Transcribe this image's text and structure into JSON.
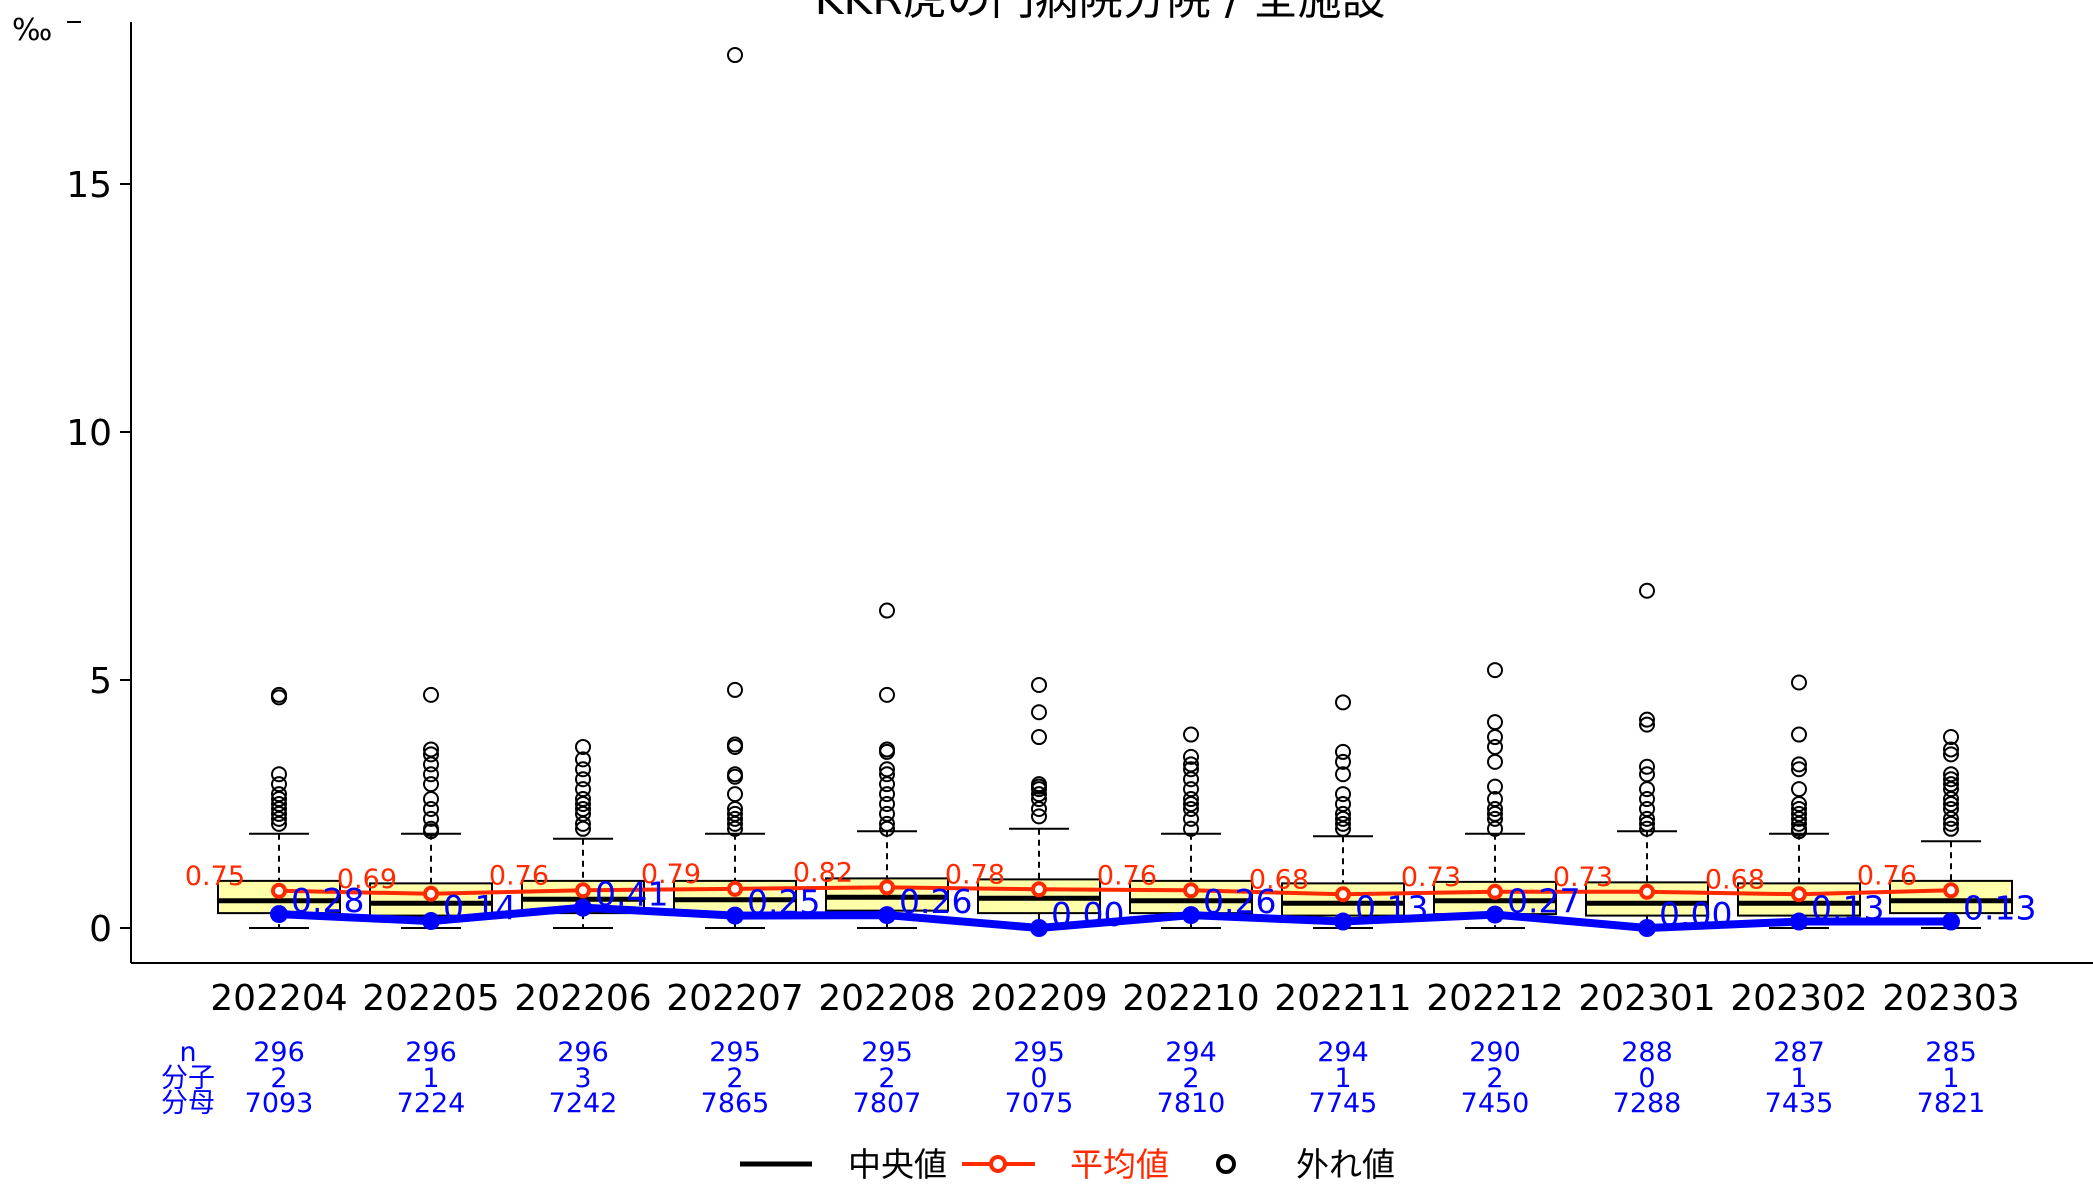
{
  "chart_data": {
    "type": "box",
    "title": "KKR虎の門病院分院 / 全施設",
    "y_unit": "‰",
    "ylim": [
      0,
      18
    ],
    "y_ticks": [
      0,
      5,
      10,
      15
    ],
    "categories": [
      "202204",
      "202205",
      "202206",
      "202207",
      "202208",
      "202209",
      "202210",
      "202211",
      "202212",
      "202301",
      "202302",
      "202303"
    ],
    "boxes": [
      {
        "q1": 0.3,
        "median": 0.55,
        "q3": 0.95,
        "whisker_low": 0,
        "whisker_high": 1.9
      },
      {
        "q1": 0.25,
        "median": 0.5,
        "q3": 0.9,
        "whisker_low": 0,
        "whisker_high": 1.9
      },
      {
        "q1": 0.3,
        "median": 0.58,
        "q3": 0.95,
        "whisker_low": 0,
        "whisker_high": 1.8
      },
      {
        "q1": 0.3,
        "median": 0.57,
        "q3": 0.95,
        "whisker_low": 0,
        "whisker_high": 1.9
      },
      {
        "q1": 0.35,
        "median": 0.62,
        "q3": 1.0,
        "whisker_low": 0,
        "whisker_high": 1.95
      },
      {
        "q1": 0.3,
        "median": 0.6,
        "q3": 0.98,
        "whisker_low": 0,
        "whisker_high": 2.0
      },
      {
        "q1": 0.3,
        "median": 0.55,
        "q3": 0.95,
        "whisker_low": 0,
        "whisker_high": 1.9
      },
      {
        "q1": 0.25,
        "median": 0.5,
        "q3": 0.9,
        "whisker_low": 0,
        "whisker_high": 1.85
      },
      {
        "q1": 0.28,
        "median": 0.55,
        "q3": 0.93,
        "whisker_low": 0,
        "whisker_high": 1.9
      },
      {
        "q1": 0.25,
        "median": 0.5,
        "q3": 0.92,
        "whisker_low": 0,
        "whisker_high": 1.95
      },
      {
        "q1": 0.25,
        "median": 0.5,
        "q3": 0.9,
        "whisker_low": 0,
        "whisker_high": 1.9
      },
      {
        "q1": 0.3,
        "median": 0.55,
        "q3": 0.95,
        "whisker_low": 0,
        "whisker_high": 1.75
      }
    ],
    "outliers": [
      [
        4.7,
        4.65,
        3.1,
        2.9,
        2.7,
        2.6,
        2.5,
        2.4,
        2.3,
        2.2,
        2.1
      ],
      [
        4.7,
        3.6,
        3.5,
        3.3,
        3.1,
        2.9,
        2.6,
        2.4,
        2.2,
        2.0,
        1.95
      ],
      [
        3.65,
        3.4,
        3.2,
        3.0,
        2.8,
        2.6,
        2.5,
        2.4,
        2.3,
        2.1,
        2.0
      ],
      [
        17.6,
        4.8,
        3.7,
        3.65,
        3.1,
        3.05,
        2.7,
        2.4,
        2.3,
        2.2,
        2.1,
        2.0
      ],
      [
        6.4,
        4.7,
        3.6,
        3.55,
        3.2,
        3.1,
        2.9,
        2.7,
        2.5,
        2.3,
        2.1,
        2.0
      ],
      [
        4.9,
        4.35,
        3.85,
        2.9,
        2.85,
        2.8,
        2.7,
        2.6,
        2.4,
        2.25
      ],
      [
        3.9,
        3.45,
        3.3,
        3.2,
        3.0,
        2.8,
        2.6,
        2.5,
        2.4,
        2.2,
        2.0
      ],
      [
        4.55,
        3.55,
        3.35,
        3.1,
        2.7,
        2.5,
        2.3,
        2.2,
        2.1,
        2.0
      ],
      [
        5.2,
        4.15,
        3.85,
        3.65,
        3.35,
        2.85,
        2.6,
        2.4,
        2.3,
        2.2,
        2.0
      ],
      [
        6.8,
        4.2,
        4.1,
        3.25,
        3.1,
        2.8,
        2.6,
        2.4,
        2.2,
        2.1,
        2.0
      ],
      [
        4.95,
        3.9,
        3.3,
        3.2,
        2.8,
        2.5,
        2.4,
        2.3,
        2.2,
        2.1,
        2.0,
        1.95
      ],
      [
        3.85,
        3.6,
        3.5,
        3.1,
        3.0,
        2.9,
        2.8,
        2.6,
        2.5,
        2.4,
        2.2,
        2.1,
        2.0
      ]
    ],
    "series": [
      {
        "name": "平均値",
        "color": "#ff2a00",
        "values": [
          0.75,
          0.69,
          0.76,
          0.79,
          0.82,
          0.78,
          0.76,
          0.68,
          0.73,
          0.73,
          0.68,
          0.76
        ],
        "labels": [
          "0.75",
          "0.69",
          "0.76",
          "0.79",
          "0.82",
          "0.78",
          "0.76",
          "0.68",
          "0.73",
          "0.73",
          "0.68",
          "0.76"
        ]
      },
      {
        "color": "#0000ff",
        "values": [
          0.28,
          0.14,
          0.41,
          0.25,
          0.26,
          0.0,
          0.26,
          0.13,
          0.27,
          0.0,
          0.13,
          0.13
        ],
        "labels": [
          "0.28",
          "0.14",
          "0.41",
          "0.25",
          "0.26",
          "0.00",
          "0.26",
          "0.13",
          "0.27",
          "0.00",
          "0.13",
          "0.13"
        ]
      }
    ],
    "stats_table": {
      "row_labels": [
        "n",
        "分子",
        "分母"
      ],
      "n": [
        "296",
        "296",
        "296",
        "295",
        "295",
        "295",
        "294",
        "294",
        "290",
        "288",
        "287",
        "285"
      ],
      "numerator": [
        "2",
        "1",
        "3",
        "2",
        "2",
        "0",
        "2",
        "1",
        "2",
        "0",
        "1",
        "1"
      ],
      "denominator": [
        "7093",
        "7224",
        "7242",
        "7865",
        "7807",
        "7075",
        "7810",
        "7745",
        "7450",
        "7288",
        "7435",
        "7821"
      ]
    },
    "legend": {
      "position": "bottom",
      "items": [
        "中央値",
        "平均値",
        "外れ値"
      ]
    },
    "colors": {
      "box_fill": "#ffffaa",
      "median": "#000000",
      "mean": "#ff2a00",
      "hospital": "#0000ff"
    }
  }
}
